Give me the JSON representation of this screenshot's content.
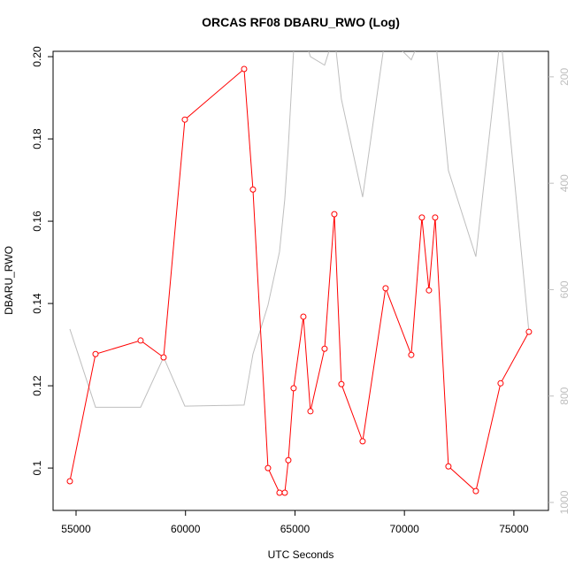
{
  "chart_data": {
    "type": "line",
    "title": "ORCAS RF08 DBARU_RWO (Log)",
    "xlabel": "UTC Seconds",
    "ylabel": "DBARU_RWO",
    "x": [
      54717,
      55889,
      57949,
      59000,
      59970,
      62677,
      63081,
      63768,
      64293,
      64535,
      64697,
      64939,
      65384,
      65707,
      66354,
      66798,
      67121,
      68091,
      69141,
      70313,
      70798,
      71121,
      71404,
      72010,
      73263,
      74394,
      75687
    ],
    "series": [
      {
        "color": "#ff0000",
        "values": [
          0.0968,
          0.1277,
          0.131,
          0.1269,
          0.1847,
          0.197,
          0.1677,
          0.1,
          0.094,
          0.094,
          0.1019,
          0.1194,
          0.1368,
          0.1138,
          0.129,
          0.1617,
          0.1204,
          0.1065,
          0.1437,
          0.1275,
          0.1609,
          0.1432,
          0.1609,
          0.1004,
          0.0944,
          0.1206,
          0.1331
        ]
      },
      {
        "color": "#bebebe",
        "axis": "y2",
        "values": [
          674,
          821,
          821,
          727,
          819,
          817,
          721,
          629,
          529,
          430,
          330,
          150,
          120,
          162,
          178,
          120,
          242,
          426,
          120,
          168,
          120,
          120,
          120,
          376,
          538,
          120,
          679
        ]
      }
    ],
    "xlim": [
      53950,
      76580
    ],
    "xticks": [
      55000,
      60000,
      65000,
      70000,
      75000
    ],
    "ylim": [
      0.0897,
      0.2013
    ],
    "yticks": [
      0.1,
      0.12,
      0.14,
      0.16,
      0.18,
      {
        "value": 0.2,
        "label": "0.20"
      }
    ],
    "y2lim": [
      1015,
      152
    ],
    "y2ticks": [
      200,
      400,
      600,
      800,
      1000
    ]
  }
}
